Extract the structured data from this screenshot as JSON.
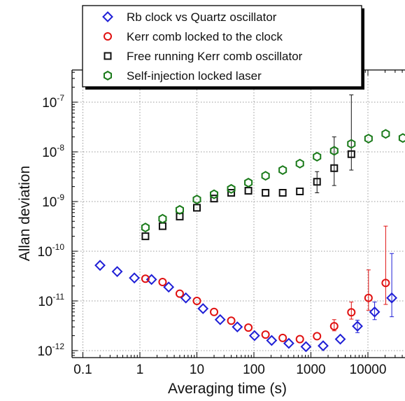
{
  "chart_data": {
    "type": "scatter",
    "xlabel": "Averaging time (s)",
    "ylabel": "Allan deviation",
    "xscale": "log",
    "yscale": "log",
    "xlim": [
      0.1,
      30000
    ],
    "ylim": [
      8e-13,
      3e-07
    ],
    "grid": true,
    "legend_position": "top",
    "x_ticks": [
      {
        "value": 0.1,
        "label": "0.1"
      },
      {
        "value": 1,
        "label": "1"
      },
      {
        "value": 10,
        "label": "10"
      },
      {
        "value": 100,
        "label": "100"
      },
      {
        "value": 1000,
        "label": "1000"
      },
      {
        "value": 10000,
        "label": "10000"
      }
    ],
    "y_ticks": [
      {
        "value": 1e-12,
        "base": "10",
        "exp": "-12"
      },
      {
        "value": 1e-11,
        "base": "10",
        "exp": "-11"
      },
      {
        "value": 1e-10,
        "base": "10",
        "exp": "-10"
      },
      {
        "value": 1e-09,
        "base": "10",
        "exp": "-9"
      },
      {
        "value": 1e-08,
        "base": "10",
        "exp": "-8"
      },
      {
        "value": 1e-07,
        "base": "10",
        "exp": "-7"
      }
    ],
    "series": [
      {
        "name": "Rb clock vs Quartz oscillator",
        "color": "#1f1fd6",
        "marker": "diamond",
        "x": [
          0.2,
          0.4,
          0.8,
          1.6,
          3.2,
          6.4,
          12.8,
          25.6,
          51.2,
          102.4,
          204.8,
          409.6,
          819.2,
          1638.4,
          3276.8,
          6553.6,
          13107.2,
          26214.4
        ],
        "y": [
          5.2e-11,
          3.9e-11,
          2.9e-11,
          2.7e-11,
          1.9e-11,
          1.15e-11,
          7e-12,
          4.2e-12,
          3e-12,
          2e-12,
          1.6e-12,
          1.4e-12,
          1.2e-12,
          1.25e-12,
          1.7e-12,
          3.1e-12,
          6e-12,
          1.15e-11
        ],
        "err_upper": [
          null,
          null,
          null,
          null,
          null,
          null,
          null,
          null,
          null,
          null,
          null,
          null,
          null,
          null,
          null,
          4.1e-12,
          9.5e-12,
          9e-11
        ],
        "err_lower": [
          null,
          null,
          null,
          null,
          null,
          null,
          null,
          null,
          null,
          null,
          null,
          null,
          null,
          null,
          null,
          2.3e-12,
          4.2e-12,
          4.8e-12
        ]
      },
      {
        "name": "Kerr comb locked to the clock",
        "color": "#e01010",
        "marker": "circle",
        "x": [
          1.25,
          2.5,
          5,
          10,
          20,
          40,
          80,
          160,
          320,
          640,
          1280,
          2560,
          5120,
          10240,
          20480
        ],
        "y": [
          2.8e-11,
          2.4e-11,
          1.4e-11,
          1e-11,
          6e-12,
          4e-12,
          2.9e-12,
          2.1e-12,
          1.8e-12,
          1.7e-12,
          1.95e-12,
          3.1e-12,
          5.9e-12,
          1.15e-11,
          2.3e-11
        ],
        "err_upper": [
          null,
          null,
          null,
          null,
          null,
          null,
          null,
          null,
          null,
          null,
          null,
          4.2e-12,
          9.5e-12,
          4.2e-11,
          3.2e-10
        ],
        "err_lower": [
          null,
          null,
          null,
          null,
          null,
          null,
          null,
          null,
          null,
          null,
          null,
          2.5e-12,
          4.3e-12,
          6.5e-12,
          8.5e-12
        ]
      },
      {
        "name": "Free running Kerr comb oscillator",
        "color": "#111111",
        "marker": "square",
        "x": [
          1.25,
          2.5,
          5,
          10,
          20,
          40,
          80,
          160,
          320,
          640,
          1280,
          2560,
          5120
        ],
        "y": [
          2e-10,
          3.2e-10,
          5e-10,
          7.5e-10,
          1.15e-09,
          1.5e-09,
          1.65e-09,
          1.5e-09,
          1.5e-09,
          1.6e-09,
          2.5e-09,
          4.7e-09,
          9e-09
        ],
        "err_upper": [
          null,
          null,
          null,
          null,
          null,
          null,
          null,
          null,
          null,
          null,
          4e-09,
          2e-08,
          1.4e-07
        ],
        "err_lower": [
          null,
          null,
          null,
          null,
          null,
          null,
          null,
          null,
          null,
          null,
          1.5e-09,
          2.1e-09,
          4.3e-09
        ]
      },
      {
        "name": "Self-injection locked laser",
        "color": "#1a7a1a",
        "marker": "hexagon",
        "x": [
          1.25,
          2.5,
          5,
          10,
          20,
          40,
          80,
          160,
          320,
          640,
          1280,
          2560,
          5120,
          10240,
          20480,
          40960
        ],
        "y": [
          3e-10,
          4.5e-10,
          6.8e-10,
          1.1e-09,
          1.4e-09,
          1.8e-09,
          2.4e-09,
          3.3e-09,
          4.3e-09,
          5.8e-09,
          8e-09,
          1.05e-08,
          1.45e-08,
          1.85e-08,
          2.3e-08,
          1.9e-08
        ],
        "err_upper": [
          null,
          null,
          null,
          null,
          null,
          null,
          null,
          null,
          null,
          null,
          null,
          null,
          null,
          null,
          null,
          null
        ],
        "err_lower": [
          null,
          null,
          null,
          null,
          null,
          null,
          null,
          null,
          null,
          null,
          null,
          null,
          null,
          null,
          null,
          null
        ]
      }
    ]
  }
}
